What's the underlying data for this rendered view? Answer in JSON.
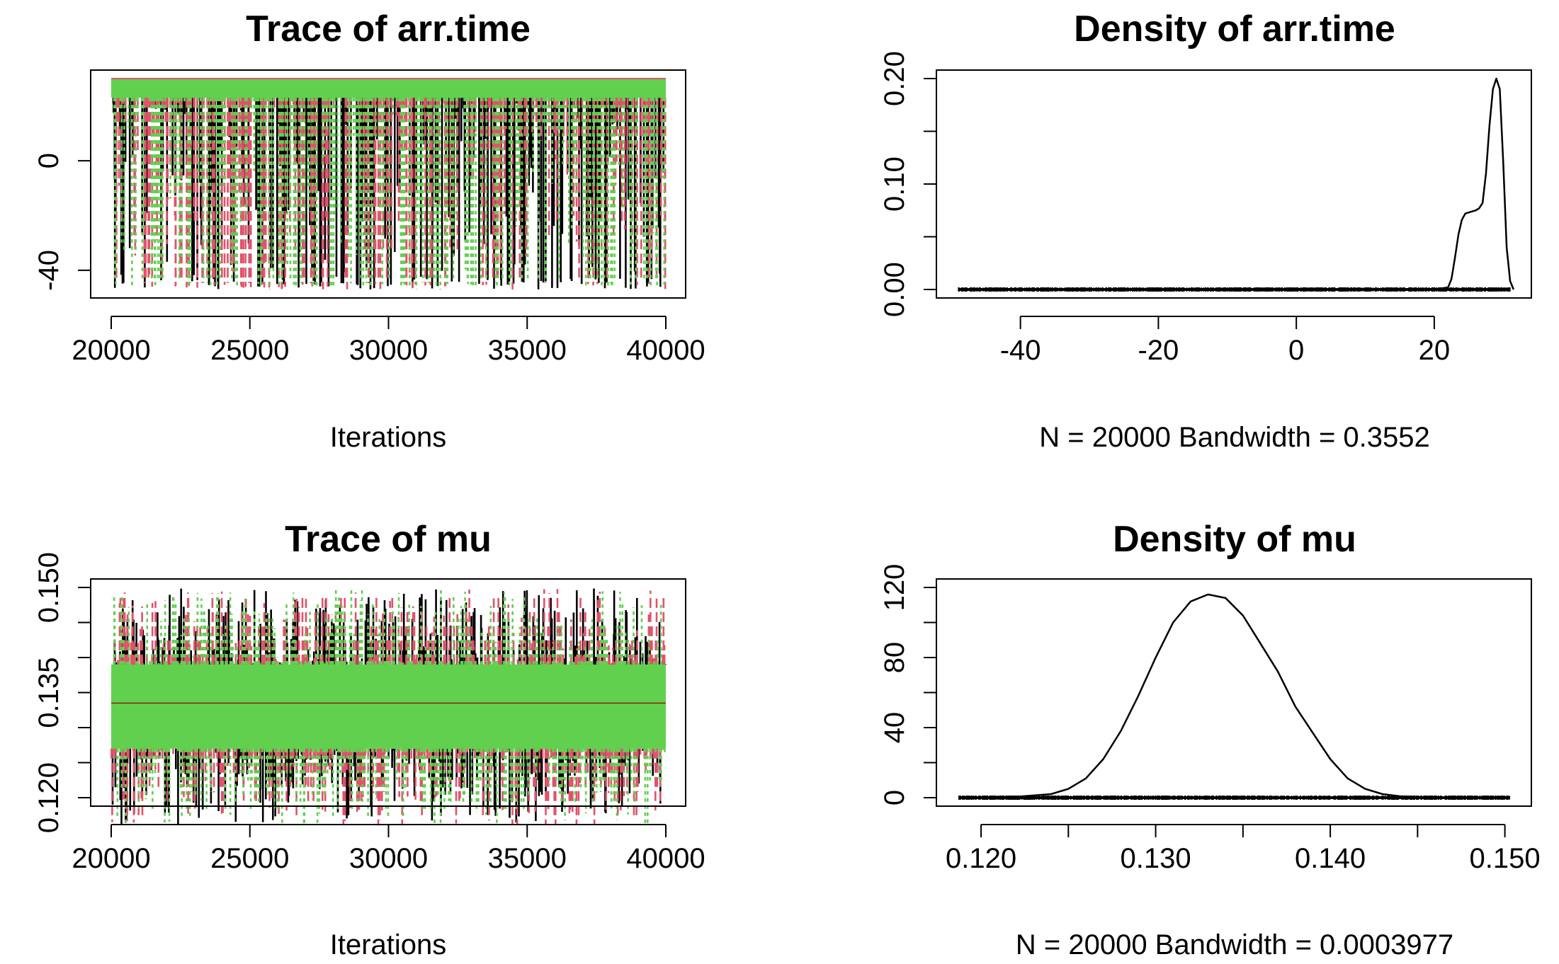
{
  "chart_data": [
    {
      "type": "line",
      "title": "Trace of arr.time",
      "xlabel": "Iterations",
      "ylabel": "",
      "xlim": [
        20000,
        40000
      ],
      "ylim": [
        -47,
        30
      ],
      "x_ticks": [
        "20000",
        "25000",
        "30000",
        "35000",
        "40000"
      ],
      "y_ticks": [
        "-40",
        "0"
      ],
      "y_tick_values": [
        -40,
        0
      ],
      "series_colors": [
        "#000000",
        "#DF536B",
        "#61D04F"
      ],
      "band_range": [
        23,
        30
      ],
      "spike_min": -47,
      "grid": false,
      "legend": "none"
    },
    {
      "type": "line",
      "title": "Density of arr.time",
      "xlabel": "N = 20000   Bandwidth = 0.3552",
      "ylabel": "",
      "xlim": [
        -49,
        31
      ],
      "ylim": [
        0,
        0.2
      ],
      "x_ticks": [
        "-40",
        "-20",
        "0",
        "20"
      ],
      "x_tick_values": [
        -40,
        -20,
        0,
        20
      ],
      "y_ticks": [
        "0.00",
        "0.10",
        "0.20"
      ],
      "y_tick_values": [
        0,
        0.1,
        0.2
      ],
      "y_minor_tick_values": [
        0.05,
        0.15
      ],
      "density": {
        "x": [
          -49,
          -30,
          0,
          15,
          20,
          22,
          22.5,
          23,
          23.5,
          24,
          24.5,
          25,
          25.5,
          26,
          26.5,
          27,
          27.5,
          28,
          28.5,
          29,
          29.5,
          30,
          30.5,
          31,
          31.5
        ],
        "y": [
          0,
          0,
          0,
          0,
          0,
          0.002,
          0.01,
          0.03,
          0.052,
          0.066,
          0.072,
          0.073,
          0.074,
          0.075,
          0.077,
          0.082,
          0.11,
          0.155,
          0.19,
          0.2,
          0.19,
          0.12,
          0.04,
          0.008,
          0
        ]
      },
      "rug_range": [
        -49,
        31
      ],
      "grid": false,
      "legend": "none"
    },
    {
      "type": "line",
      "title": "Trace of mu",
      "xlabel": "Iterations",
      "ylabel": "",
      "xlim": [
        20000,
        40000
      ],
      "ylim": [
        0.12,
        0.15
      ],
      "x_ticks": [
        "20000",
        "25000",
        "30000",
        "35000",
        "40000"
      ],
      "y_ticks": [
        "0.120",
        "0.135",
        "0.150"
      ],
      "y_tick_values": [
        0.12,
        0.135,
        0.15
      ],
      "y_minor_tick_values": [
        0.125,
        0.13,
        0.14,
        0.145
      ],
      "series_colors": [
        "#000000",
        "#DF536B",
        "#61D04F"
      ],
      "band_range": [
        0.127,
        0.139
      ],
      "mean": 0.1335,
      "grid": false,
      "legend": "none"
    },
    {
      "type": "line",
      "title": "Density of mu",
      "xlabel": "N = 20000   Bandwidth = 0.0003977",
      "ylabel": "",
      "xlim": [
        0.1187,
        0.1503
      ],
      "ylim": [
        0,
        120
      ],
      "x_ticks": [
        "0.120",
        "0.130",
        "0.140",
        "0.150"
      ],
      "x_tick_values": [
        0.12,
        0.13,
        0.14,
        0.15
      ],
      "x_minor_tick_values": [
        0.125,
        0.135,
        0.145
      ],
      "y_ticks": [
        "0",
        "40",
        "80",
        "120"
      ],
      "y_tick_values": [
        0,
        40,
        80,
        120
      ],
      "y_minor_tick_values": [
        20,
        60,
        100
      ],
      "density": {
        "x": [
          0.1187,
          0.122,
          0.124,
          0.125,
          0.126,
          0.127,
          0.128,
          0.129,
          0.13,
          0.131,
          0.132,
          0.133,
          0.134,
          0.135,
          0.136,
          0.137,
          0.138,
          0.139,
          0.14,
          0.141,
          0.142,
          0.143,
          0.144,
          0.146,
          0.1503
        ],
        "y": [
          0,
          0.5,
          2,
          5,
          11,
          22,
          38,
          58,
          80,
          100,
          112,
          116,
          114,
          104,
          88,
          72,
          52,
          37,
          22,
          11,
          5,
          2,
          0.8,
          0.2,
          0
        ],
        "mode": 0.1333
      },
      "rug_range": [
        0.1187,
        0.1503
      ],
      "grid": false,
      "legend": "none"
    }
  ]
}
